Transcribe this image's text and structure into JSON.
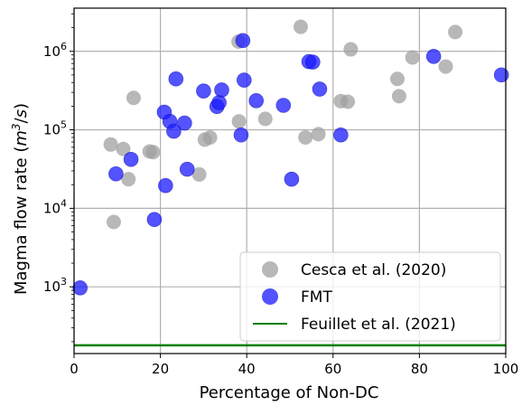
{
  "chart_data": {
    "type": "scatter",
    "title": "",
    "xlabel": "Percentage of Non-DC",
    "ylabel_main": "Magma flow rate (",
    "ylabel_m": "m",
    "ylabel_exp": "3",
    "ylabel_slash": "/",
    "ylabel_s": "s",
    "ylabel_close": ")",
    "xlim": [
      0,
      100
    ],
    "ylim_log10": [
      2.15,
      6.55
    ],
    "y_scale": "log",
    "grid": true,
    "legend_position": "lower-right",
    "x_ticks": [
      0,
      20,
      40,
      60,
      80,
      100
    ],
    "x_tick_labels": [
      "0",
      "20",
      "40",
      "60",
      "80",
      "100"
    ],
    "y_ticks": [
      1000,
      10000,
      100000,
      1000000
    ],
    "y_tick_labels": [
      {
        "base": "10",
        "exp": "3"
      },
      {
        "base": "10",
        "exp": "4"
      },
      {
        "base": "10",
        "exp": "5"
      },
      {
        "base": "10",
        "exp": "6"
      }
    ],
    "series": [
      {
        "name": "Cesca et al. (2020)",
        "marker": "circle",
        "color": "#a0a0a0",
        "points": [
          [
            8.5,
            65000
          ],
          [
            9.2,
            6700
          ],
          [
            11.4,
            57000
          ],
          [
            12.6,
            23500
          ],
          [
            13.8,
            255000
          ],
          [
            17.5,
            53000
          ],
          [
            18.3,
            52000
          ],
          [
            29.0,
            27000
          ],
          [
            30.3,
            75000
          ],
          [
            31.5,
            80000
          ],
          [
            38.1,
            1330000
          ],
          [
            38.2,
            128000
          ],
          [
            44.3,
            138000
          ],
          [
            52.5,
            2050000
          ],
          [
            53.6,
            80000
          ],
          [
            56.6,
            88000
          ],
          [
            61.8,
            232000
          ],
          [
            63.4,
            228000
          ],
          [
            64.1,
            1060000
          ],
          [
            74.9,
            445000
          ],
          [
            75.3,
            268000
          ],
          [
            78.4,
            835000
          ],
          [
            86.1,
            640000
          ],
          [
            88.3,
            1760000
          ]
        ]
      },
      {
        "name": "FMT",
        "marker": "circle",
        "color": "#1a1aff",
        "points": [
          [
            1.4,
            970
          ],
          [
            9.7,
            27500
          ],
          [
            13.2,
            42000
          ],
          [
            18.6,
            7200
          ],
          [
            20.9,
            168000
          ],
          [
            21.2,
            19500
          ],
          [
            22.2,
            128000
          ],
          [
            23.1,
            96000
          ],
          [
            23.6,
            445000
          ],
          [
            25.6,
            122000
          ],
          [
            26.2,
            31500
          ],
          [
            30.0,
            312000
          ],
          [
            33.1,
            198000
          ],
          [
            33.6,
            222000
          ],
          [
            34.2,
            322000
          ],
          [
            38.7,
            86000
          ],
          [
            39.1,
            1370000
          ],
          [
            39.4,
            430000
          ],
          [
            42.2,
            235000
          ],
          [
            48.5,
            205000
          ],
          [
            50.4,
            23500
          ],
          [
            54.4,
            740000
          ],
          [
            55.3,
            730000
          ],
          [
            56.9,
            330000
          ],
          [
            61.8,
            86000
          ],
          [
            83.3,
            860000
          ],
          [
            99.0,
            500000
          ]
        ]
      },
      {
        "name": "Feuillet et al. (2021)",
        "marker": "line",
        "color": "#008000",
        "y_value": 180
      }
    ]
  }
}
